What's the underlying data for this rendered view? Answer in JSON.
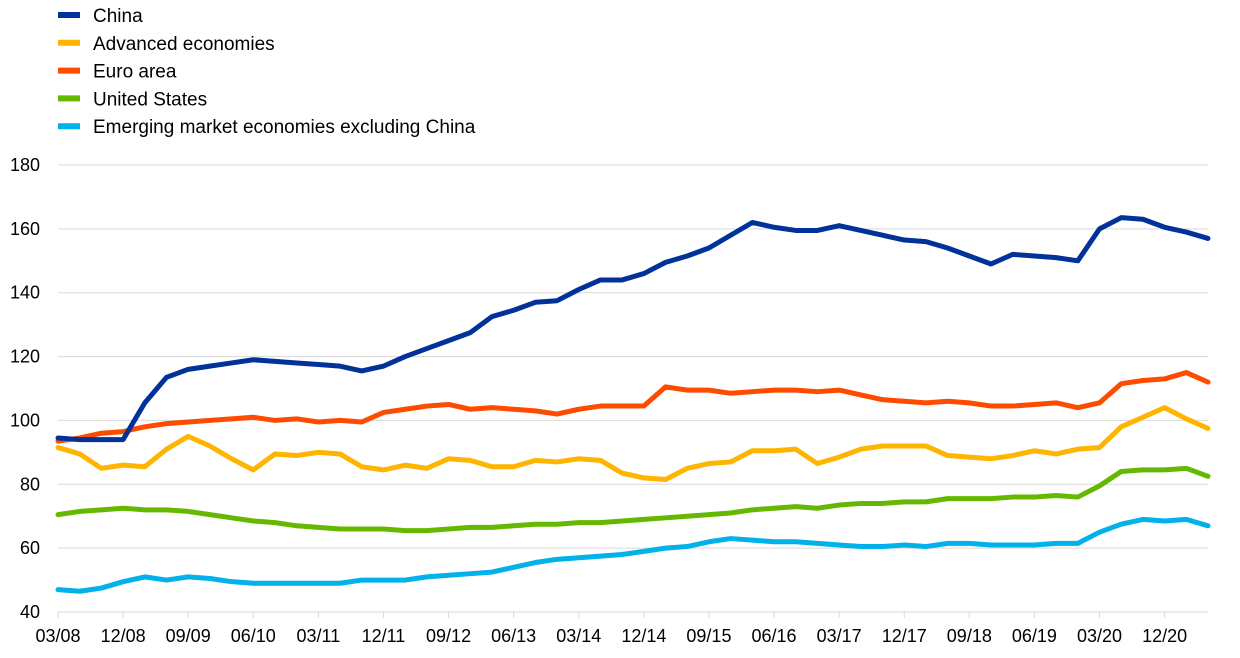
{
  "chart_data": {
    "type": "line",
    "title": "",
    "xlabel": "",
    "ylabel": "",
    "ylim": [
      40,
      180
    ],
    "yticks": [
      40,
      60,
      80,
      100,
      120,
      140,
      160,
      180
    ],
    "x_tick_labels": [
      "03/08",
      "12/08",
      "09/09",
      "06/10",
      "03/11",
      "12/11",
      "09/12",
      "06/13",
      "03/14",
      "12/14",
      "09/15",
      "06/16",
      "03/17",
      "12/17",
      "09/18",
      "06/19",
      "03/20",
      "12/20"
    ],
    "grid": "horizontal",
    "legend_position": "top-left",
    "x_range": [
      "03/08",
      "09/21"
    ],
    "x_frequency": "quarterly",
    "series": [
      {
        "name": "China",
        "color": "#003299",
        "values": [
          94.5,
          94,
          94,
          94,
          105.5,
          113.5,
          116,
          117,
          118,
          119,
          118.5,
          118,
          117.5,
          117,
          115.5,
          117,
          120,
          122.5,
          125,
          127.5,
          132.5,
          134.5,
          137,
          137.5,
          141,
          144,
          144,
          146,
          149.5,
          151.5,
          154,
          158,
          162,
          160.5,
          159.5,
          159.5,
          161,
          159.5,
          158,
          156.5,
          156,
          154,
          151.5,
          149,
          152,
          151.5,
          151,
          150,
          160,
          163.5,
          163,
          160.5,
          159,
          157
        ]
      },
      {
        "name": "Advanced economies",
        "color": "#ffb400",
        "values": [
          91.5,
          89.5,
          85,
          86,
          85.5,
          91,
          95,
          92,
          88,
          84.5,
          89.5,
          89,
          90,
          89.5,
          85.5,
          84.5,
          86,
          85,
          88,
          87.5,
          85.5,
          85.5,
          87.5,
          87,
          88,
          87.5,
          83.5,
          82,
          81.5,
          85,
          86.5,
          87,
          90.5,
          90.5,
          91,
          86.5,
          88.5,
          91,
          92,
          92,
          92,
          89,
          88.5,
          88,
          89,
          90.5,
          89.5,
          91,
          91.5,
          98,
          101,
          104,
          100.5,
          97.5
        ]
      },
      {
        "name": "Euro area",
        "color": "#ff4b00",
        "values": [
          93.5,
          94.5,
          96,
          96.5,
          98,
          99,
          99.5,
          100,
          100.5,
          101,
          100,
          100.5,
          99.5,
          100,
          99.5,
          102.5,
          103.5,
          104.5,
          105,
          103.5,
          104,
          103.5,
          103,
          102,
          103.5,
          104.5,
          104.5,
          104.5,
          110.5,
          109.5,
          109.5,
          108.5,
          109,
          109.5,
          109.5,
          109,
          109.5,
          108,
          106.5,
          106,
          105.5,
          106,
          105.5,
          104.5,
          104.5,
          105,
          105.5,
          104,
          105.5,
          111.5,
          112.5,
          113,
          115,
          112
        ]
      },
      {
        "name": "United States",
        "color": "#65b800",
        "values": [
          70.5,
          71.5,
          72,
          72.5,
          72,
          72,
          71.5,
          70.5,
          69.5,
          68.5,
          68,
          67,
          66.5,
          66,
          66,
          66,
          65.5,
          65.5,
          66,
          66.5,
          66.5,
          67,
          67.5,
          67.5,
          68,
          68,
          68.5,
          69,
          69.5,
          70,
          70.5,
          71,
          72,
          72.5,
          73,
          72.5,
          73.5,
          74,
          74,
          74.5,
          74.5,
          75.5,
          75.5,
          75.5,
          76,
          76,
          76.5,
          76,
          79.5,
          84,
          84.5,
          84.5,
          85,
          82.5
        ]
      },
      {
        "name": "Emerging market economies excluding China",
        "color": "#00b1ea",
        "values": [
          47,
          46.5,
          47.5,
          49.5,
          51,
          50,
          51,
          50.5,
          49.5,
          49,
          49,
          49,
          49,
          49,
          50,
          50,
          50,
          51,
          51.5,
          52,
          52.5,
          54,
          55.5,
          56.5,
          57,
          57.5,
          58,
          59,
          60,
          60.5,
          62,
          63,
          62.5,
          62,
          62,
          61.5,
          61,
          60.5,
          60.5,
          61,
          60.5,
          61.5,
          61.5,
          61,
          61,
          61,
          61.5,
          61.5,
          65,
          67.5,
          69,
          68.5,
          69,
          67
        ]
      }
    ]
  }
}
